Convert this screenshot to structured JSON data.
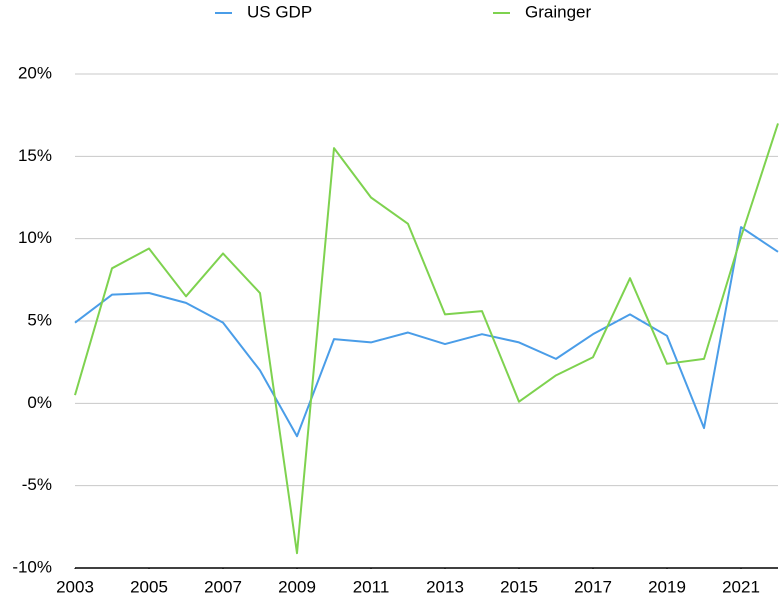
{
  "chart_data": {
    "type": "line",
    "x": [
      2003,
      2004,
      2005,
      2006,
      2007,
      2008,
      2009,
      2010,
      2011,
      2012,
      2013,
      2014,
      2015,
      2016,
      2017,
      2018,
      2019,
      2020,
      2021,
      2022
    ],
    "series": [
      {
        "name": "US GDP",
        "color": "#4a9de8",
        "values": [
          4.9,
          6.6,
          6.7,
          6.1,
          4.9,
          2.0,
          -2.0,
          3.9,
          3.7,
          4.3,
          3.6,
          4.2,
          3.7,
          2.7,
          4.2,
          5.4,
          4.1,
          -1.5,
          10.7,
          9.2
        ]
      },
      {
        "name": "Grainger",
        "color": "#7ed24f",
        "values": [
          0.5,
          8.2,
          9.4,
          6.5,
          9.1,
          6.7,
          -9.1,
          15.5,
          12.5,
          10.9,
          5.4,
          5.6,
          0.1,
          1.7,
          2.8,
          7.6,
          2.4,
          2.7,
          10.1,
          17.0
        ]
      }
    ],
    "xlim": [
      2003,
      2022
    ],
    "xticks": [
      2003,
      2005,
      2007,
      2009,
      2011,
      2013,
      2015,
      2017,
      2019,
      2021
    ],
    "ylim": [
      -10,
      20
    ],
    "yticks": [
      {
        "value": -10,
        "label": "-10%"
      },
      {
        "value": -5,
        "label": "-5%"
      },
      {
        "value": 0,
        "label": "0%"
      },
      {
        "value": 5,
        "label": "5%"
      },
      {
        "value": 10,
        "label": "10%"
      },
      {
        "value": 15,
        "label": "15%"
      },
      {
        "value": 20,
        "label": "20%"
      }
    ],
    "grid": true,
    "legend": "top"
  }
}
